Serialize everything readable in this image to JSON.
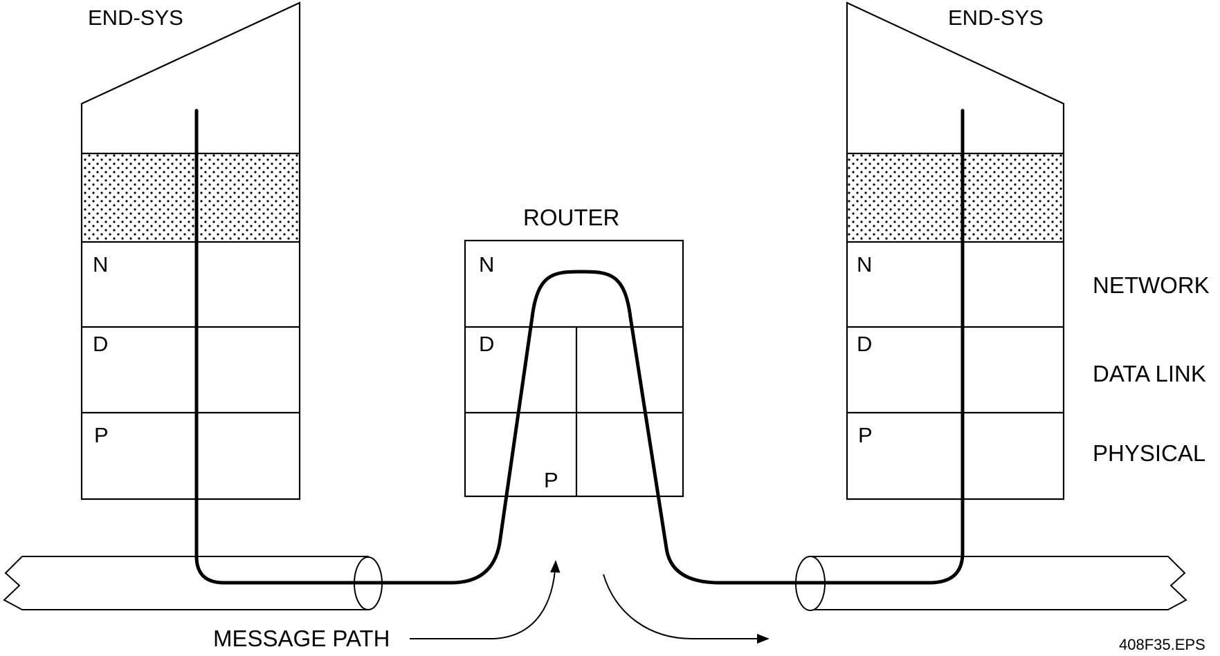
{
  "left_system": {
    "title": "END-SYS",
    "layers": [
      "N",
      "D",
      "P"
    ]
  },
  "router": {
    "title": "ROUTER",
    "layers": [
      "N",
      "D",
      "P"
    ]
  },
  "right_system": {
    "title": "END-SYS",
    "layers": [
      "N",
      "D",
      "P"
    ]
  },
  "layer_names": [
    "NETWORK",
    "DATA LINK",
    "PHYSICAL"
  ],
  "message_path_label": "MESSAGE PATH",
  "file_label": "408F35.EPS"
}
